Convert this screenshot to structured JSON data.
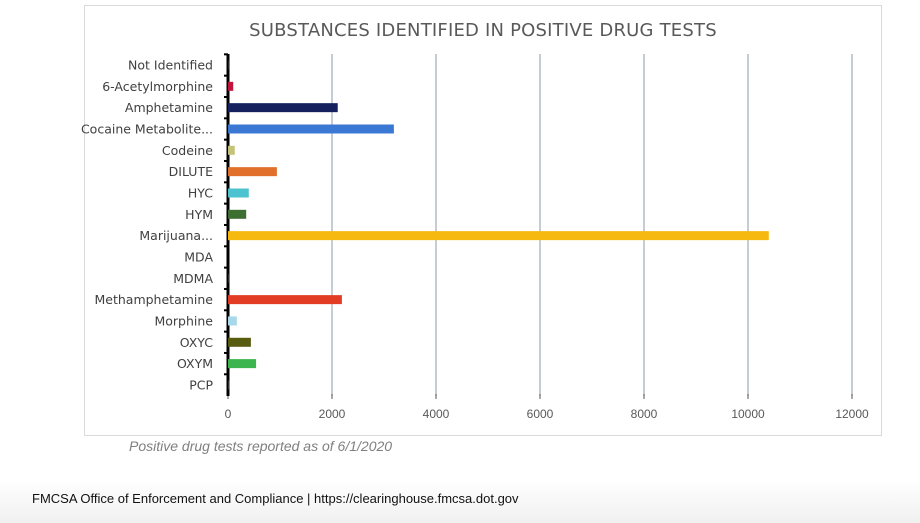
{
  "chart_data": {
    "type": "bar",
    "orientation": "horizontal",
    "title": "SUBSTANCES IDENTIFIED IN POSITIVE DRUG TESTS",
    "categories": [
      "Not Identified",
      "6-Acetylmorphine",
      "Amphetamine",
      "Cocaine Metabolite...",
      "Codeine",
      "DILUTE",
      "HYC",
      "HYM",
      "Marijuana...",
      "MDA",
      "MDMA",
      "Methamphetamine",
      "Morphine",
      "OXYC",
      "OXYM",
      "PCP"
    ],
    "values": [
      30,
      100,
      2110,
      3190,
      130,
      940,
      400,
      350,
      10400,
      0,
      5,
      2190,
      170,
      440,
      540,
      30
    ],
    "colors": [
      "#222222",
      "#c0143c",
      "#14215e",
      "#3a78d4",
      "#c3c47a",
      "#e0702c",
      "#4cc3cf",
      "#3d7030",
      "#f5b90f",
      "#999999",
      "#999999",
      "#e23c24",
      "#a9d8ea",
      "#585c10",
      "#3cb54e",
      "#333333"
    ],
    "xlim": [
      0,
      12000
    ],
    "xticks": [
      0,
      2000,
      4000,
      6000,
      8000,
      10000,
      12000
    ],
    "xlabel": "",
    "ylabel": "",
    "grid": "vertical",
    "legend": "none"
  },
  "caption": "Positive drug tests reported as of 6/1/2020",
  "footer": "FMCSA Office of Enforcement and Compliance | https://clearinghouse.fmcsa.dot.gov"
}
